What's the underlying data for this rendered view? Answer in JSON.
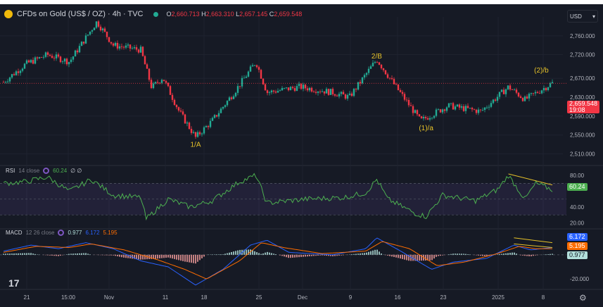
{
  "header": {
    "symbol": "CFDs on Gold (US$ / OZ) · 4h · TVC",
    "open_label": "O",
    "open": "2,660.713",
    "high_label": "H",
    "high": "2,663.310",
    "low_label": "L",
    "low": "2,657.145",
    "close_label": "C",
    "close": "2,659.548"
  },
  "currency": "USD",
  "currency_chevron": "▾",
  "price_badge": {
    "price": "2,659.548",
    "timer": "19:08",
    "color": "#f23645"
  },
  "colors": {
    "up": "#22ab94",
    "down": "#f23645",
    "rsi": "#4caf50",
    "macd": "#2962ff",
    "signal": "#ff6d00",
    "trend": "#e6c229"
  },
  "chart_data": [
    {
      "type": "candlestick",
      "title": "CFDs on Gold (US$ / OZ) · 4h · TVC",
      "ylim": [
        2490,
        2800
      ],
      "yticks": [
        "2,760.000",
        "2,720.000",
        "2,670.000",
        "2,630.000",
        "2,590.000",
        "2,550.000",
        "2,510.000"
      ],
      "ytick_values": [
        2760,
        2720,
        2670,
        2630,
        2590,
        2550,
        2510
      ],
      "xticks": [
        "21",
        "15:00",
        "Nov",
        "11",
        "18",
        "25",
        "Dec",
        "9",
        "16",
        "23",
        "2025",
        "8"
      ],
      "path_keypoints": [
        [
          0,
          2662
        ],
        [
          4,
          2700
        ],
        [
          8,
          2720
        ],
        [
          12,
          2705
        ],
        [
          17,
          2790
        ],
        [
          20,
          2740
        ],
        [
          25,
          2730
        ],
        [
          27,
          2650
        ],
        [
          29,
          2672
        ],
        [
          32,
          2600
        ],
        [
          35,
          2545
        ],
        [
          38,
          2580
        ],
        [
          42,
          2640
        ],
        [
          46,
          2705
        ],
        [
          48,
          2640
        ],
        [
          54,
          2652
        ],
        [
          60,
          2640
        ],
        [
          63,
          2630
        ],
        [
          68,
          2710
        ],
        [
          71,
          2660
        ],
        [
          76,
          2580
        ],
        [
          81,
          2612
        ],
        [
          87,
          2600
        ],
        [
          92,
          2652
        ],
        [
          95,
          2625
        ],
        [
          100,
          2660
        ]
      ],
      "annotations": [
        {
          "text": "2/B",
          "at": [
            68,
            2712
          ]
        },
        {
          "text": "1/A",
          "at": [
            35,
            2525
          ]
        },
        {
          "text": "(1)/a",
          "at": [
            77,
            2560
          ]
        },
        {
          "text": "(2)/b",
          "at": [
            98,
            2682
          ]
        }
      ]
    },
    {
      "type": "line",
      "name": "RSI",
      "label": "RSI",
      "params": "14 close",
      "value": "60.24",
      "extra": "∅ ∅",
      "ylim": [
        15,
        90
      ],
      "yticks": [
        "80.00",
        "40.00",
        "20.00"
      ],
      "ytick_values": [
        80,
        40,
        20
      ],
      "band": [
        30,
        70
      ],
      "keypoints": [
        [
          0,
          70
        ],
        [
          4,
          72
        ],
        [
          8,
          78
        ],
        [
          12,
          60
        ],
        [
          16,
          75
        ],
        [
          20,
          55
        ],
        [
          25,
          52
        ],
        [
          26,
          25
        ],
        [
          30,
          50
        ],
        [
          34,
          40
        ],
        [
          38,
          48
        ],
        [
          43,
          72
        ],
        [
          46,
          80
        ],
        [
          48,
          45
        ],
        [
          55,
          50
        ],
        [
          62,
          52
        ],
        [
          66,
          58
        ],
        [
          68,
          75
        ],
        [
          70,
          50
        ],
        [
          75,
          32
        ],
        [
          77,
          28
        ],
        [
          80,
          55
        ],
        [
          86,
          48
        ],
        [
          90,
          62
        ],
        [
          92,
          80
        ],
        [
          95,
          50
        ],
        [
          97,
          70
        ],
        [
          100,
          62
        ]
      ]
    },
    {
      "type": "line",
      "name": "MACD",
      "label": "MACD",
      "params": "12 26 close",
      "histogram": "0.977",
      "macd": "6.172",
      "signal": "5.195",
      "ylim": [
        -28,
        22
      ],
      "yticks": [
        "-20.000"
      ],
      "ytick_values": [
        -20
      ],
      "macd_keypoints": [
        [
          0,
          3
        ],
        [
          5,
          8
        ],
        [
          10,
          5
        ],
        [
          15,
          10
        ],
        [
          20,
          5
        ],
        [
          25,
          -5
        ],
        [
          30,
          -10
        ],
        [
          35,
          -25
        ],
        [
          40,
          -12
        ],
        [
          45,
          8
        ],
        [
          48,
          12
        ],
        [
          52,
          2
        ],
        [
          60,
          0
        ],
        [
          66,
          5
        ],
        [
          68,
          14
        ],
        [
          72,
          4
        ],
        [
          78,
          -12
        ],
        [
          82,
          -6
        ],
        [
          88,
          -3
        ],
        [
          93,
          8
        ],
        [
          96,
          4
        ],
        [
          100,
          6
        ]
      ],
      "signal_keypoints": [
        [
          0,
          2
        ],
        [
          6,
          7
        ],
        [
          12,
          6
        ],
        [
          16,
          9
        ],
        [
          22,
          4
        ],
        [
          28,
          -4
        ],
        [
          33,
          -12
        ],
        [
          37,
          -20
        ],
        [
          43,
          -5
        ],
        [
          47,
          10
        ],
        [
          51,
          6
        ],
        [
          58,
          1
        ],
        [
          66,
          3
        ],
        [
          69,
          11
        ],
        [
          74,
          5
        ],
        [
          79,
          -9
        ],
        [
          84,
          -6
        ],
        [
          90,
          1
        ],
        [
          94,
          7
        ],
        [
          97,
          5
        ],
        [
          100,
          5
        ]
      ]
    }
  ],
  "settings_icon": "gear-icon"
}
